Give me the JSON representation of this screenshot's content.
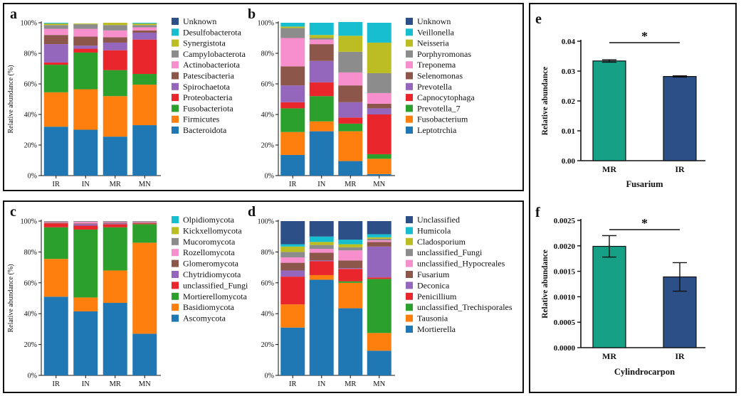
{
  "chart_data": [
    {
      "panel": "a",
      "type": "bar",
      "stacked": true,
      "ylabel": "Relative abundance (%)",
      "ylim": [
        0,
        100
      ],
      "yticks": [
        "0%",
        "20%",
        "40%",
        "60%",
        "80%",
        "100%"
      ],
      "categories": [
        "IR",
        "IN",
        "MR",
        "MN"
      ],
      "legend": "right",
      "series": [
        {
          "name": "Bacteroidota",
          "color": "#1f77b4",
          "values": [
            32,
            30,
            25.5,
            33
          ]
        },
        {
          "name": "Firmicutes",
          "color": "#ff7f0e",
          "values": [
            22.5,
            26.5,
            26.5,
            26.5
          ]
        },
        {
          "name": "Fusobacteriota",
          "color": "#2ca02c",
          "values": [
            18,
            24,
            17,
            7
          ]
        },
        {
          "name": "Proteobacteria",
          "color": "#e8262b",
          "values": [
            1.5,
            2.5,
            13,
            22.5
          ]
        },
        {
          "name": "Spirochaetota",
          "color": "#9467bd",
          "values": [
            12,
            2,
            5,
            4.5
          ]
        },
        {
          "name": "Patescibacteria",
          "color": "#8c564b",
          "values": [
            6,
            6,
            3.5,
            1.5
          ]
        },
        {
          "name": "Actinobacteriota",
          "color": "#f78fcd",
          "values": [
            4,
            5,
            4.5,
            2
          ]
        },
        {
          "name": "Campylobacterota",
          "color": "#8c8c8c",
          "values": [
            2.5,
            3,
            3.5,
            1.5
          ]
        },
        {
          "name": "Synergistota",
          "color": "#bcbd22",
          "values": [
            1,
            0.5,
            1.5,
            1
          ]
        },
        {
          "name": "Desulfobacterota",
          "color": "#17becf",
          "values": [
            0.5,
            0,
            0,
            0.5
          ]
        },
        {
          "name": "Unknown",
          "color": "#2b4f86",
          "values": [
            0,
            0,
            0,
            0
          ]
        }
      ]
    },
    {
      "panel": "b",
      "type": "bar",
      "stacked": true,
      "ylim": [
        0,
        100
      ],
      "yticks": [
        "0%",
        "20%",
        "40%",
        "60%",
        "80%",
        "100%"
      ],
      "categories": [
        "IR",
        "IN",
        "MR",
        "MN"
      ],
      "legend": "right",
      "series": [
        {
          "name": "Leptotrchia",
          "color": "#1f77b4",
          "values": [
            13.5,
            29,
            9.5,
            1
          ]
        },
        {
          "name": "Fusobacterium",
          "color": "#ff7f0e",
          "values": [
            15,
            6.5,
            19.5,
            10
          ]
        },
        {
          "name": "Prevotella_7",
          "color": "#2ca02c",
          "values": [
            15.5,
            16.5,
            5,
            3
          ]
        },
        {
          "name": "Capnocytophaga",
          "color": "#e8262b",
          "values": [
            4,
            9,
            4,
            26
          ]
        },
        {
          "name": "Prevotella",
          "color": "#9467bd",
          "values": [
            11,
            14,
            10,
            4
          ]
        },
        {
          "name": "Selenomonas",
          "color": "#8c564b",
          "values": [
            12.5,
            11,
            11,
            3
          ]
        },
        {
          "name": "Treponema",
          "color": "#f78fcd",
          "values": [
            18.5,
            3,
            8.5,
            7
          ]
        },
        {
          "name": "Porphyromonas",
          "color": "#8c8c8c",
          "values": [
            6.5,
            1,
            13.5,
            13
          ]
        },
        {
          "name": "Neisseria",
          "color": "#bcbd22",
          "values": [
            1,
            2,
            10.5,
            20
          ]
        },
        {
          "name": "Veillonella",
          "color": "#17becf",
          "values": [
            2.5,
            8,
            9,
            13
          ]
        },
        {
          "name": "Unknown",
          "color": "#2b4f86",
          "values": [
            0,
            0,
            0,
            0
          ]
        }
      ]
    },
    {
      "panel": "c",
      "type": "bar",
      "stacked": true,
      "ylabel": "Relative abundance (%)",
      "ylim": [
        0,
        100
      ],
      "yticks": [
        "0%",
        "20%",
        "40%",
        "60%",
        "80%",
        "100%"
      ],
      "categories": [
        "IR",
        "IN",
        "MR",
        "MN"
      ],
      "legend": "right",
      "series": [
        {
          "name": "Ascomycota",
          "color": "#1f77b4",
          "values": [
            51,
            41.5,
            47,
            27
          ]
        },
        {
          "name": "Basidiomycota",
          "color": "#ff7f0e",
          "values": [
            24.5,
            9,
            21,
            59
          ]
        },
        {
          "name": "Mortierellomycota",
          "color": "#2ca02c",
          "values": [
            20.5,
            44,
            28,
            12
          ]
        },
        {
          "name": "unclassified_Fungi",
          "color": "#e8262b",
          "values": [
            2.5,
            2.5,
            2,
            0.5
          ]
        },
        {
          "name": "Chytridiomycota",
          "color": "#9467bd",
          "values": [
            0,
            1,
            0.5,
            0
          ]
        },
        {
          "name": "Glomeromycota",
          "color": "#8c564b",
          "values": [
            0.5,
            0.5,
            0.5,
            0.5
          ]
        },
        {
          "name": "Rozellomycota",
          "color": "#f78fcd",
          "values": [
            0.5,
            1,
            0.5,
            0.5
          ]
        },
        {
          "name": "Mucoromycota",
          "color": "#8c8c8c",
          "values": [
            0.5,
            0.5,
            0.5,
            0.5
          ]
        },
        {
          "name": "Kickxellomycota",
          "color": "#bcbd22",
          "values": [
            0,
            0,
            0,
            0
          ]
        },
        {
          "name": "Olpidiomycota",
          "color": "#17becf",
          "values": [
            0,
            0,
            0,
            0
          ]
        }
      ]
    },
    {
      "panel": "d",
      "type": "bar",
      "stacked": true,
      "ylim": [
        0,
        100
      ],
      "yticks": [
        "0%",
        "20%",
        "40%",
        "60%",
        "80%",
        "100%"
      ],
      "categories": [
        "IR",
        "IN",
        "MR",
        "MN"
      ],
      "legend": "right",
      "series": [
        {
          "name": "Mortierella",
          "color": "#1f77b4",
          "values": [
            31,
            62,
            43.5,
            16
          ]
        },
        {
          "name": "Tausonia",
          "color": "#ff7f0e",
          "values": [
            15,
            3,
            16.5,
            11.5
          ]
        },
        {
          "name": "unclassified_Trechisporales",
          "color": "#2ca02c",
          "values": [
            0,
            0,
            1,
            35
          ]
        },
        {
          "name": "Penicillium",
          "color": "#e8262b",
          "values": [
            18,
            9,
            8,
            1
          ]
        },
        {
          "name": "Deconica",
          "color": "#9467bd",
          "values": [
            4,
            0.5,
            0.5,
            20
          ]
        },
        {
          "name": "Fusarium",
          "color": "#8c564b",
          "values": [
            5,
            5,
            5,
            3
          ]
        },
        {
          "name": "unclassified_Hypocreales",
          "color": "#f78fcd",
          "values": [
            3.5,
            2.5,
            6.5,
            1
          ]
        },
        {
          "name": "unclassified_Fungi",
          "color": "#8c8c8c",
          "values": [
            3.5,
            2.5,
            2,
            1
          ]
        },
        {
          "name": "Cladosporium",
          "color": "#bcbd22",
          "values": [
            3.5,
            2,
            2,
            1
          ]
        },
        {
          "name": "Humicola",
          "color": "#17becf",
          "values": [
            1.5,
            3.5,
            3,
            2
          ]
        },
        {
          "name": "Unclassified",
          "color": "#2b4f86",
          "values": [
            15,
            10,
            12,
            8.5
          ]
        }
      ]
    },
    {
      "panel": "e",
      "type": "bar",
      "xlabel": "Fusarium",
      "ylabel": "Relative abundance",
      "ylim": [
        0,
        0.04
      ],
      "yticks": [
        "0.00",
        "0.01",
        "0.02",
        "0.03",
        "0.04"
      ],
      "categories": [
        "MR",
        "IR"
      ],
      "values": [
        0.0334,
        0.0282
      ],
      "errors": [
        0.0004,
        0.0002
      ],
      "colors": [
        "#16a085",
        "#2b4f86"
      ],
      "significance": "*"
    },
    {
      "panel": "f",
      "type": "bar",
      "xlabel": "Cylindrocarpon",
      "ylabel": "Relative abundance",
      "ylim": [
        0,
        0.0025
      ],
      "yticks": [
        "0.0000",
        "0.0005",
        "0.0010",
        "0.0015",
        "0.0020",
        "0.0025"
      ],
      "categories": [
        "MR",
        "IR"
      ],
      "values": [
        0.00199,
        0.00139
      ],
      "errors": [
        0.00021,
        0.00028
      ],
      "colors": [
        "#16a085",
        "#2b4f86"
      ],
      "significance": "*"
    }
  ]
}
